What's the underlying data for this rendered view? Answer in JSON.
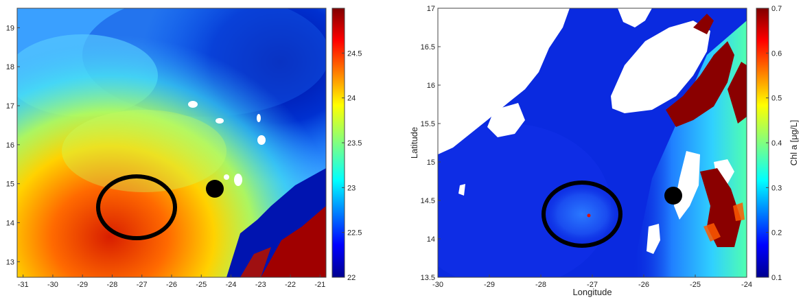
{
  "chart_data": [
    {
      "type": "heatmap",
      "title": "",
      "xlabel": "",
      "ylabel": "",
      "xlim": [
        -31.2,
        -20.8
      ],
      "ylim": [
        12.6,
        19.5
      ],
      "x_ticks": [
        -31,
        -30,
        -29,
        -28,
        -27,
        -26,
        -25,
        -24,
        -23,
        -22,
        -21
      ],
      "y_ticks": [
        13,
        14,
        15,
        16,
        17,
        18,
        19
      ],
      "colorbar": {
        "label": "",
        "range": [
          22,
          25
        ],
        "ticks": [
          22,
          22.5,
          23,
          23.5,
          24,
          24.5
        ],
        "colormap": "jet"
      },
      "annotations": [
        {
          "type": "ellipse-outline",
          "center": [
            -27.1,
            14.3
          ],
          "color": "#000000"
        },
        {
          "type": "filled-dot",
          "center": [
            -24.4,
            14.9
          ],
          "color": "#000000"
        }
      ]
    },
    {
      "type": "heatmap",
      "title": "",
      "xlabel": "Longitude",
      "ylabel": "Latitude",
      "xlim": [
        -30,
        -24
      ],
      "ylim": [
        13.5,
        17
      ],
      "x_ticks": [
        -30,
        -29,
        -28,
        -27,
        -26,
        -25,
        -24
      ],
      "y_ticks": [
        13.5,
        14,
        14.5,
        15,
        15.5,
        16,
        16.5,
        17
      ],
      "colorbar": {
        "label": "Chl a [μg/L]",
        "range": [
          0.1,
          0.7
        ],
        "ticks": [
          0.1,
          0.2,
          0.3,
          0.4,
          0.5,
          0.6,
          0.7
        ],
        "colormap": "jet"
      },
      "annotations": [
        {
          "type": "ellipse-outline",
          "center": [
            -27.2,
            14.3
          ],
          "color": "#000000"
        },
        {
          "type": "filled-dot",
          "center": [
            -25.45,
            14.6
          ],
          "color": "#000000"
        }
      ]
    }
  ],
  "colors": {
    "jet": [
      "#00008f",
      "#0000ff",
      "#0080ff",
      "#00ffff",
      "#80ff80",
      "#ffff00",
      "#ff8000",
      "#ff0000",
      "#800000"
    ],
    "land": "#ffffff",
    "marker": "#000000"
  }
}
